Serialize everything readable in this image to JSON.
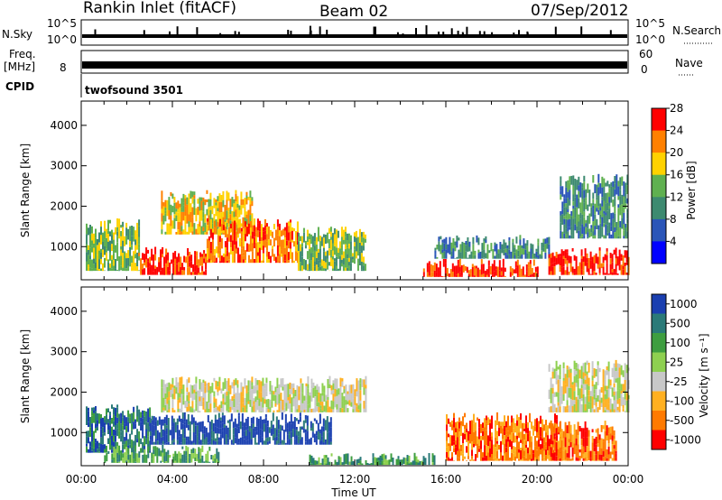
{
  "header": {
    "station": "Rankin Inlet (fitACF)",
    "beam": "Beam 02",
    "date": "07/Sep/2012"
  },
  "top_panels": {
    "nsky_label": "N.Sky",
    "nsky_ticks": [
      "10^5",
      "10^0"
    ],
    "nsearch_label": "N.Search",
    "nsearch_ticks": [
      "10^5",
      "10^0"
    ],
    "freq_label": "Freq.",
    "freq_unit": "[MHz]",
    "freq_tick": "8",
    "nave_label": "Nave",
    "nave_ticks": [
      "60",
      "0"
    ],
    "cpid_label": "CPID",
    "cpid_value": "twofsound 3501"
  },
  "chart_data": [
    {
      "type": "heatmap",
      "parameter": "Power",
      "ylabel": "Slant Range [km]",
      "y_ticks": [
        "1000",
        "2000",
        "3000",
        "4000"
      ],
      "ylim": [
        180,
        4600
      ],
      "colorbar_label": "Power [dB]",
      "colorbar_ticks": [
        "4",
        "8",
        "12",
        "16",
        "20",
        "24",
        "28"
      ],
      "colorbar_colors": [
        "#0000ff",
        "#2a55b8",
        "#3d8a70",
        "#5fb050",
        "#ffd200",
        "#ff8000",
        "#ff0000"
      ],
      "regions": [
        {
          "t0": 0.2,
          "t1": 2.5,
          "r0": 400,
          "r1": 1700,
          "level": 3
        },
        {
          "t0": 2.5,
          "t1": 5.5,
          "r0": 300,
          "r1": 1000,
          "level": 6
        },
        {
          "t0": 3.5,
          "t1": 7.5,
          "r0": 1300,
          "r1": 2400,
          "level": 4
        },
        {
          "t0": 5.5,
          "t1": 9.5,
          "r0": 600,
          "r1": 1700,
          "level": 5
        },
        {
          "t0": 9.5,
          "t1": 12.5,
          "r0": 400,
          "r1": 1500,
          "level": 3
        },
        {
          "t0": 15.0,
          "t1": 20.0,
          "r0": 250,
          "r1": 700,
          "level": 6
        },
        {
          "t0": 15.5,
          "t1": 20.5,
          "r0": 700,
          "r1": 1300,
          "level": 2
        },
        {
          "t0": 20.5,
          "t1": 24.0,
          "r0": 300,
          "r1": 1000,
          "level": 6
        },
        {
          "t0": 21.0,
          "t1": 24.0,
          "r0": 1200,
          "r1": 2800,
          "level": 2
        }
      ]
    },
    {
      "type": "heatmap",
      "parameter": "Velocity",
      "ylabel": "Slant Range [km]",
      "y_ticks": [
        "1000",
        "2000",
        "3000",
        "4000"
      ],
      "ylim": [
        180,
        4600
      ],
      "colorbar_label": "Velocity [m s⁻¹]",
      "colorbar_ticks": [
        "1000",
        "500",
        "100",
        "25",
        "-25",
        "-100",
        "-500",
        "-1000"
      ],
      "colorbar_colors": [
        "#1a3fb0",
        "#2a7a78",
        "#3e9e40",
        "#8ed050",
        "#c8c8c8",
        "#ffb020",
        "#ff7a00",
        "#ff0000"
      ],
      "regions": [
        {
          "t0": 0.2,
          "t1": 3.0,
          "r0": 500,
          "r1": 1700,
          "level": 1
        },
        {
          "t0": 3.0,
          "t1": 11.0,
          "r0": 700,
          "r1": 1500,
          "level": 0
        },
        {
          "t0": 3.5,
          "t1": 12.5,
          "r0": 1500,
          "r1": 2400,
          "level": 4
        },
        {
          "t0": 1.0,
          "t1": 6.0,
          "r0": 250,
          "r1": 700,
          "level": 2
        },
        {
          "t0": 10.0,
          "t1": 15.5,
          "r0": 200,
          "r1": 500,
          "level": 2
        },
        {
          "t0": 16.0,
          "t1": 21.0,
          "r0": 300,
          "r1": 1500,
          "level": 6
        },
        {
          "t0": 20.5,
          "t1": 23.5,
          "r0": 300,
          "r1": 1300,
          "level": 6
        },
        {
          "t0": 20.5,
          "t1": 24.0,
          "r0": 1500,
          "r1": 2800,
          "level": 4
        }
      ]
    }
  ],
  "x_axis": {
    "label": "Time UT",
    "ticks": [
      "00:00",
      "04:00",
      "08:00",
      "12:00",
      "16:00",
      "20:00",
      "00:00"
    ]
  }
}
